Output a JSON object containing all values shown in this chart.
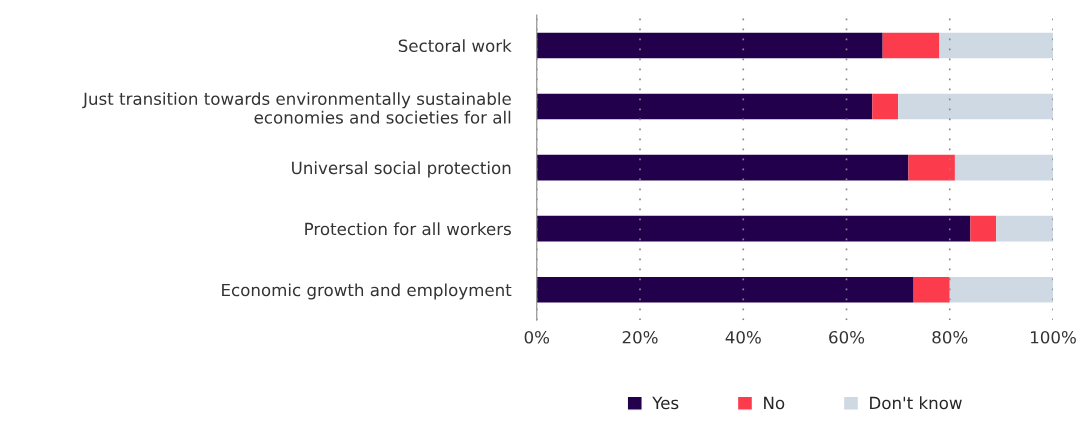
{
  "chart_data": {
    "type": "bar",
    "orientation": "horizontal",
    "stacked": true,
    "categories": [
      "Sectoral work",
      "Just transition towards environmentally sustainable\neconomies and societies for all",
      "Universal social protection",
      "Protection for all workers",
      "Economic growth and employment"
    ],
    "series": [
      {
        "name": "Yes",
        "color": "#22004c",
        "values": [
          67,
          65,
          72,
          84,
          73
        ]
      },
      {
        "name": "No",
        "color": "#fc3c4c",
        "values": [
          11,
          5,
          9,
          5,
          7
        ]
      },
      {
        "name": "Don't know",
        "color": "#ced9e3",
        "values": [
          22,
          30,
          19,
          11,
          20
        ]
      }
    ],
    "xlim": [
      0,
      100
    ],
    "xticks": [
      {
        "value": 0,
        "label": "0%"
      },
      {
        "value": 20,
        "label": "20%"
      },
      {
        "value": 40,
        "label": "40%"
      },
      {
        "value": 60,
        "label": "60%"
      },
      {
        "value": 80,
        "label": "80%"
      },
      {
        "value": 100,
        "label": "100%"
      }
    ],
    "grid": "x",
    "legend": "bottom"
  }
}
